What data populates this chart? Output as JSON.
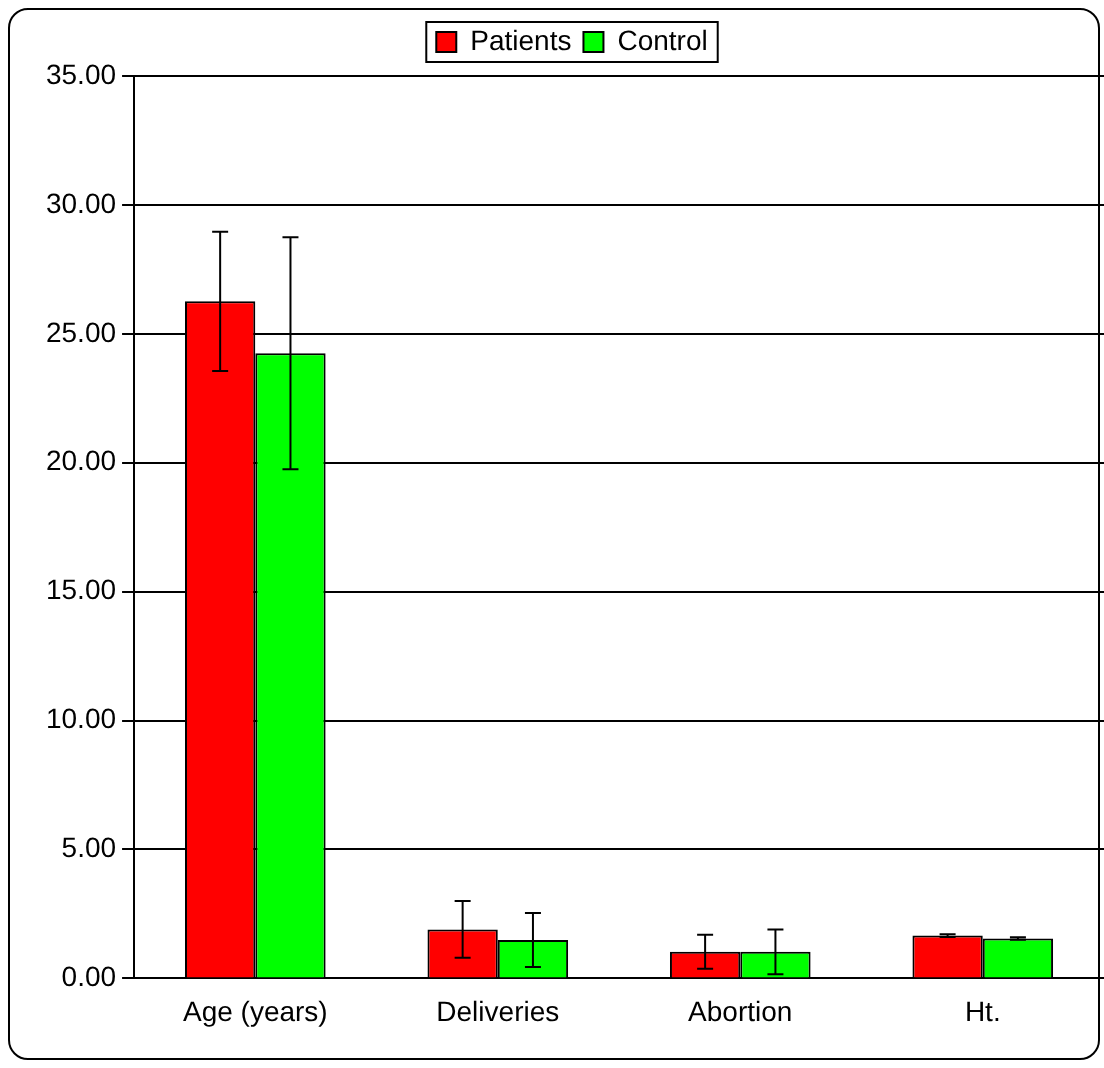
{
  "chart_data": {
    "type": "bar",
    "categories": [
      "Age (years)",
      "Deliveries",
      "Abortion",
      "Ht."
    ],
    "series": [
      {
        "name": "Patients",
        "color": "#ff0000",
        "values": [
          26.26,
          1.9,
          1.03,
          1.66
        ],
        "errors": [
          2.7,
          1.1,
          0.66,
          0.05
        ]
      },
      {
        "name": "Control",
        "color": "#00ff00",
        "values": [
          24.25,
          1.49,
          1.03,
          1.55
        ],
        "errors": [
          4.5,
          1.05,
          0.87,
          0.05
        ]
      }
    ],
    "ylim": [
      0,
      35
    ],
    "yticks": [
      {
        "value": 0,
        "label": "0.00"
      },
      {
        "value": 5,
        "label": "5.00"
      },
      {
        "value": 10,
        "label": "10.00"
      },
      {
        "value": 15,
        "label": "15.00"
      },
      {
        "value": 20,
        "label": "20.00"
      },
      {
        "value": 25,
        "label": "25.00"
      },
      {
        "value": 30,
        "label": "30.00"
      },
      {
        "value": 35,
        "label": "35.00"
      }
    ],
    "grid": "y",
    "legend": "top"
  }
}
